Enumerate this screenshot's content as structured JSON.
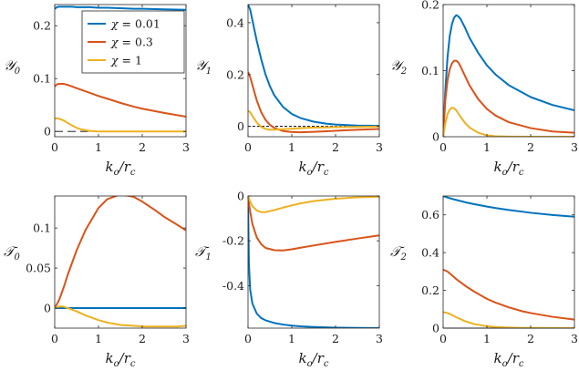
{
  "colors": {
    "chi_0.01": "#0072BD",
    "chi_0.3": "#D95319",
    "chi_1": "#EDB120",
    "axis": "#262626"
  },
  "legend": {
    "placement": "top-right of first panel",
    "entries": [
      {
        "sym": "χ",
        "rest": " = 0.01",
        "color": "#0072BD"
      },
      {
        "sym": "χ",
        "rest": " = 0.3",
        "color": "#D95319"
      },
      {
        "sym": "χ",
        "rest": " = 1",
        "color": "#EDB120"
      }
    ]
  },
  "chart_data": [
    {
      "type": "line",
      "id": "Y0",
      "ylabel": {
        "main": "𝒴",
        "sub": "0"
      },
      "xlabel": {
        "main": "k",
        "sub1": "o",
        "mid": "/r",
        "sub2": "c"
      },
      "xlim": [
        0,
        3
      ],
      "ylim": [
        -0.01,
        0.24
      ],
      "xticks": [
        "0",
        "1",
        "2",
        "3"
      ],
      "xtick_values": [
        0,
        1,
        2,
        3
      ],
      "yticks": [
        "0",
        "0.1",
        "0.2"
      ],
      "ytick_values": [
        0,
        0.1,
        0.2
      ],
      "grid": false,
      "refline": {
        "y": 0,
        "style": "dashed"
      },
      "x": [
        0,
        0.05,
        0.1,
        0.2,
        0.3,
        0.4,
        0.5,
        0.6,
        0.8,
        1.0,
        1.2,
        1.5,
        1.8,
        2.0,
        2.5,
        3.0
      ],
      "series": [
        {
          "name": "χ = 0.01",
          "values": [
            0.232,
            0.235,
            0.236,
            0.236,
            0.236,
            0.236,
            0.235,
            0.235,
            0.235,
            0.234,
            0.234,
            0.233,
            0.232,
            0.232,
            0.231,
            0.23
          ]
        },
        {
          "name": "χ = 0.3",
          "values": [
            0.085,
            0.089,
            0.09,
            0.09,
            0.088,
            0.085,
            0.082,
            0.079,
            0.073,
            0.067,
            0.062,
            0.054,
            0.047,
            0.043,
            0.035,
            0.028
          ]
        },
        {
          "name": "χ = 1",
          "values": [
            0.024,
            0.025,
            0.024,
            0.021,
            0.016,
            0.011,
            0.007,
            0.004,
            0.001,
            0.0,
            0.0,
            0.0,
            0.0,
            0.0,
            0.0,
            0.0
          ]
        }
      ]
    },
    {
      "type": "line",
      "id": "Y1",
      "ylabel": {
        "main": "𝒴",
        "sub": "1"
      },
      "xlabel": {
        "main": "k",
        "sub1": "o",
        "mid": "/r",
        "sub2": "c"
      },
      "xlim": [
        0,
        3
      ],
      "ylim": [
        -0.04,
        0.47
      ],
      "xticks": [
        "0",
        "1",
        "2",
        "3"
      ],
      "xtick_values": [
        0,
        1,
        2,
        3
      ],
      "yticks": [
        "0",
        "0.2",
        "0.4"
      ],
      "ytick_values": [
        0,
        0.2,
        0.4
      ],
      "grid": false,
      "refline": {
        "y": 0,
        "style": "dotted"
      },
      "x": [
        0,
        0.05,
        0.1,
        0.2,
        0.3,
        0.4,
        0.5,
        0.6,
        0.8,
        1.0,
        1.2,
        1.5,
        1.8,
        2.0,
        2.5,
        3.0
      ],
      "series": [
        {
          "name": "χ = 0.01",
          "values": [
            0.47,
            0.45,
            0.41,
            0.33,
            0.26,
            0.2,
            0.155,
            0.12,
            0.075,
            0.048,
            0.032,
            0.018,
            0.01,
            0.007,
            0.003,
            0.002
          ]
        },
        {
          "name": "χ = 0.3",
          "values": [
            0.21,
            0.19,
            0.16,
            0.1,
            0.055,
            0.025,
            0.006,
            -0.006,
            -0.018,
            -0.022,
            -0.023,
            -0.021,
            -0.019,
            -0.017,
            -0.013,
            -0.01
          ]
        },
        {
          "name": "χ = 1",
          "values": [
            0.06,
            0.055,
            0.04,
            0.015,
            -0.002,
            -0.01,
            -0.013,
            -0.013,
            -0.011,
            -0.009,
            -0.007,
            -0.005,
            -0.004,
            -0.003,
            -0.002,
            -0.001
          ]
        }
      ]
    },
    {
      "type": "line",
      "id": "Y2",
      "ylabel": {
        "main": "𝒴",
        "sub": "2"
      },
      "xlabel": {
        "main": "k",
        "sub1": "o",
        "mid": "/r",
        "sub2": "c"
      },
      "xlim": [
        0,
        3
      ],
      "ylim": [
        0,
        0.2
      ],
      "xticks": [
        "0",
        "1",
        "2",
        "3"
      ],
      "xtick_values": [
        0,
        1,
        2,
        3
      ],
      "yticks": [
        "0",
        "0.1",
        "0.2"
      ],
      "ytick_values": [
        0,
        0.1,
        0.2
      ],
      "grid": false,
      "x": [
        0,
        0.05,
        0.1,
        0.15,
        0.2,
        0.25,
        0.3,
        0.35,
        0.4,
        0.5,
        0.6,
        0.8,
        1.0,
        1.2,
        1.5,
        2.0,
        2.5,
        3.0
      ],
      "series": [
        {
          "name": "χ = 0.01",
          "values": [
            0.0,
            0.07,
            0.12,
            0.152,
            0.17,
            0.18,
            0.184,
            0.182,
            0.178,
            0.165,
            0.15,
            0.127,
            0.108,
            0.094,
            0.078,
            0.06,
            0.048,
            0.04
          ]
        },
        {
          "name": "χ = 0.3",
          "values": [
            0.0,
            0.055,
            0.085,
            0.102,
            0.111,
            0.115,
            0.115,
            0.112,
            0.106,
            0.092,
            0.078,
            0.057,
            0.042,
            0.032,
            0.022,
            0.013,
            0.008,
            0.006
          ]
        },
        {
          "name": "χ = 1",
          "values": [
            0.0,
            0.02,
            0.034,
            0.041,
            0.044,
            0.043,
            0.04,
            0.035,
            0.03,
            0.021,
            0.014,
            0.006,
            0.002,
            0.0007,
            0.0002,
            0.0,
            0.0,
            0.0
          ]
        }
      ]
    },
    {
      "type": "line",
      "id": "T0",
      "ylabel": {
        "main": "𝒯",
        "sub": "0"
      },
      "xlabel": {
        "main": "k",
        "sub1": "o",
        "mid": "/r",
        "sub2": "c"
      },
      "xlim": [
        0,
        3
      ],
      "ylim": [
        -0.025,
        0.14
      ],
      "xticks": [
        "0",
        "1",
        "2",
        "3"
      ],
      "xtick_values": [
        0,
        1,
        2,
        3
      ],
      "yticks": [
        "0",
        "0.05",
        "0.1"
      ],
      "ytick_values": [
        0,
        0.05,
        0.1
      ],
      "grid": false,
      "refline": {
        "y": 0,
        "style": "dashed"
      },
      "x": [
        0,
        0.1,
        0.2,
        0.3,
        0.5,
        0.7,
        1.0,
        1.2,
        1.5,
        1.8,
        2.0,
        2.3,
        2.5,
        2.8,
        3.0
      ],
      "series": [
        {
          "name": "χ = 0.01",
          "values": [
            0,
            0,
            0,
            0,
            0,
            0,
            0,
            0,
            0,
            0,
            0,
            0,
            0,
            0,
            0
          ]
        },
        {
          "name": "χ = 0.3",
          "values": [
            0.0,
            0.01,
            0.025,
            0.042,
            0.072,
            0.097,
            0.125,
            0.136,
            0.142,
            0.139,
            0.133,
            0.122,
            0.114,
            0.104,
            0.097
          ]
        },
        {
          "name": "χ = 1",
          "values": [
            0.0,
            0.002,
            0.002,
            0.0,
            -0.004,
            -0.009,
            -0.015,
            -0.018,
            -0.021,
            -0.022,
            -0.023,
            -0.023,
            -0.023,
            -0.023,
            -0.022
          ]
        }
      ]
    },
    {
      "type": "line",
      "id": "T1",
      "ylabel": {
        "main": "𝒯",
        "sub": "1"
      },
      "xlabel": {
        "main": "k",
        "sub1": "o",
        "mid": "/r",
        "sub2": "c"
      },
      "xlim": [
        0,
        3
      ],
      "ylim": [
        -0.59,
        0.0
      ],
      "xticks": [
        "0",
        "1",
        "2",
        "3"
      ],
      "xtick_values": [
        0,
        1,
        2,
        3
      ],
      "yticks": [
        "-0.4",
        "-0.2",
        "0"
      ],
      "ytick_values": [
        -0.4,
        -0.2,
        0
      ],
      "grid": false,
      "x": [
        0,
        0.02,
        0.05,
        0.1,
        0.2,
        0.3,
        0.4,
        0.6,
        0.8,
        1.0,
        1.2,
        1.5,
        2.0,
        2.5,
        3.0
      ],
      "series": [
        {
          "name": "χ = 0.01",
          "values": [
            0.0,
            -0.3,
            -0.42,
            -0.48,
            -0.525,
            -0.545,
            -0.555,
            -0.567,
            -0.574,
            -0.579,
            -0.582,
            -0.585,
            -0.588,
            -0.589,
            -0.59
          ]
        },
        {
          "name": "χ = 0.3",
          "values": [
            0.0,
            -0.03,
            -0.07,
            -0.125,
            -0.185,
            -0.215,
            -0.232,
            -0.242,
            -0.243,
            -0.238,
            -0.231,
            -0.221,
            -0.205,
            -0.19,
            -0.176
          ]
        },
        {
          "name": "χ = 1",
          "values": [
            0.0,
            -0.01,
            -0.025,
            -0.045,
            -0.065,
            -0.072,
            -0.072,
            -0.063,
            -0.052,
            -0.042,
            -0.033,
            -0.023,
            -0.012,
            -0.006,
            -0.003
          ]
        }
      ]
    },
    {
      "type": "line",
      "id": "T2",
      "ylabel": {
        "main": "𝒯",
        "sub": "2"
      },
      "xlabel": {
        "main": "k",
        "sub1": "o",
        "mid": "/r",
        "sub2": "c"
      },
      "xlim": [
        0,
        3
      ],
      "ylim": [
        0,
        0.7
      ],
      "xticks": [
        "0",
        "1",
        "2",
        "3"
      ],
      "xtick_values": [
        0,
        1,
        2,
        3
      ],
      "yticks": [
        "0",
        "0.2",
        "0.4",
        "0.6"
      ],
      "ytick_values": [
        0,
        0.2,
        0.4,
        0.6
      ],
      "grid": false,
      "refline": {
        "y": 0,
        "style": "solid"
      },
      "x": [
        0,
        0.1,
        0.2,
        0.3,
        0.5,
        0.7,
        1.0,
        1.2,
        1.5,
        1.8,
        2.0,
        2.5,
        3.0
      ],
      "series": [
        {
          "name": "χ = 0.01",
          "values": [
            0.7,
            0.692,
            0.685,
            0.679,
            0.667,
            0.657,
            0.644,
            0.636,
            0.626,
            0.617,
            0.611,
            0.599,
            0.59
          ]
        },
        {
          "name": "χ = 0.3",
          "values": [
            0.31,
            0.3,
            0.28,
            0.26,
            0.225,
            0.195,
            0.155,
            0.135,
            0.11,
            0.09,
            0.08,
            0.06,
            0.045
          ]
        },
        {
          "name": "χ = 1",
          "values": [
            0.085,
            0.08,
            0.07,
            0.058,
            0.037,
            0.022,
            0.01,
            0.006,
            0.003,
            0.0015,
            0.001,
            0.0005,
            0.0003
          ]
        }
      ]
    }
  ]
}
